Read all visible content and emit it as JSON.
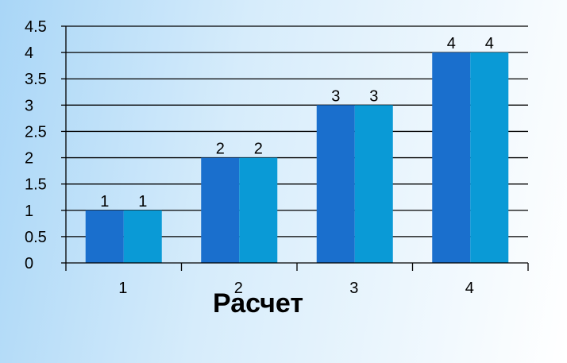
{
  "chart_data": {
    "type": "bar",
    "categories": [
      "1",
      "2",
      "3",
      "4"
    ],
    "series": [
      {
        "values": [
          1,
          2,
          3,
          4
        ],
        "color": "#1a6fcd"
      },
      {
        "values": [
          1,
          2,
          3,
          4
        ],
        "color": "#0a9ad6"
      }
    ],
    "xlabel": "Расчет",
    "ylabel": "",
    "ylim": [
      0,
      4.5
    ],
    "yticks": [
      "0",
      "0.5",
      "1",
      "1.5",
      "2",
      "2.5",
      "3",
      "3.5",
      "4",
      "4.5"
    ],
    "ytick_step": 0.5,
    "grid": true,
    "data_labels": true,
    "legend": "none"
  }
}
